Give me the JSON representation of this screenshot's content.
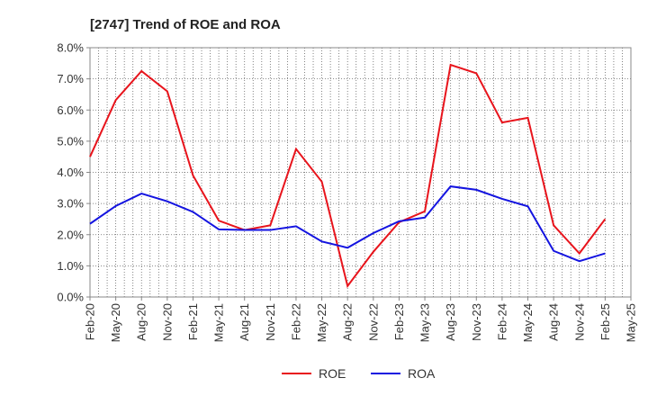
{
  "chart_data": {
    "type": "line",
    "title": "[2747]  Trend of ROE and ROA",
    "xlabel": "",
    "ylabel": "",
    "ylim": [
      0,
      8
    ],
    "y_ticks": [
      "0.0%",
      "1.0%",
      "2.0%",
      "3.0%",
      "4.0%",
      "5.0%",
      "6.0%",
      "7.0%",
      "8.0%"
    ],
    "categories": [
      "Feb-20",
      "May-20",
      "Aug-20",
      "Nov-20",
      "Feb-21",
      "May-21",
      "Aug-21",
      "Nov-21",
      "Feb-22",
      "May-22",
      "Aug-22",
      "Nov-22",
      "Feb-23",
      "May-23",
      "Aug-23",
      "Nov-23",
      "Feb-24",
      "May-24",
      "Aug-24",
      "Nov-24",
      "Feb-25",
      "May-25"
    ],
    "grid": "vertical dotted lines at minor months, horizontal dotted at ticks",
    "legend_position": "bottom-center",
    "series": [
      {
        "name": "ROE",
        "color": "#e8141c",
        "values": [
          4.5,
          6.32,
          7.25,
          6.6,
          3.9,
          2.45,
          2.15,
          2.3,
          4.75,
          3.7,
          0.35,
          1.45,
          2.4,
          2.75,
          7.45,
          7.18,
          5.6,
          5.75,
          2.3,
          1.4,
          2.5,
          null
        ]
      },
      {
        "name": "ROA",
        "color": "#1414e0",
        "values": [
          2.35,
          2.92,
          3.32,
          3.07,
          2.73,
          2.17,
          2.15,
          2.15,
          2.27,
          1.78,
          1.58,
          2.05,
          2.43,
          2.55,
          3.55,
          3.44,
          3.15,
          2.91,
          1.48,
          1.15,
          1.4,
          null
        ]
      }
    ]
  }
}
